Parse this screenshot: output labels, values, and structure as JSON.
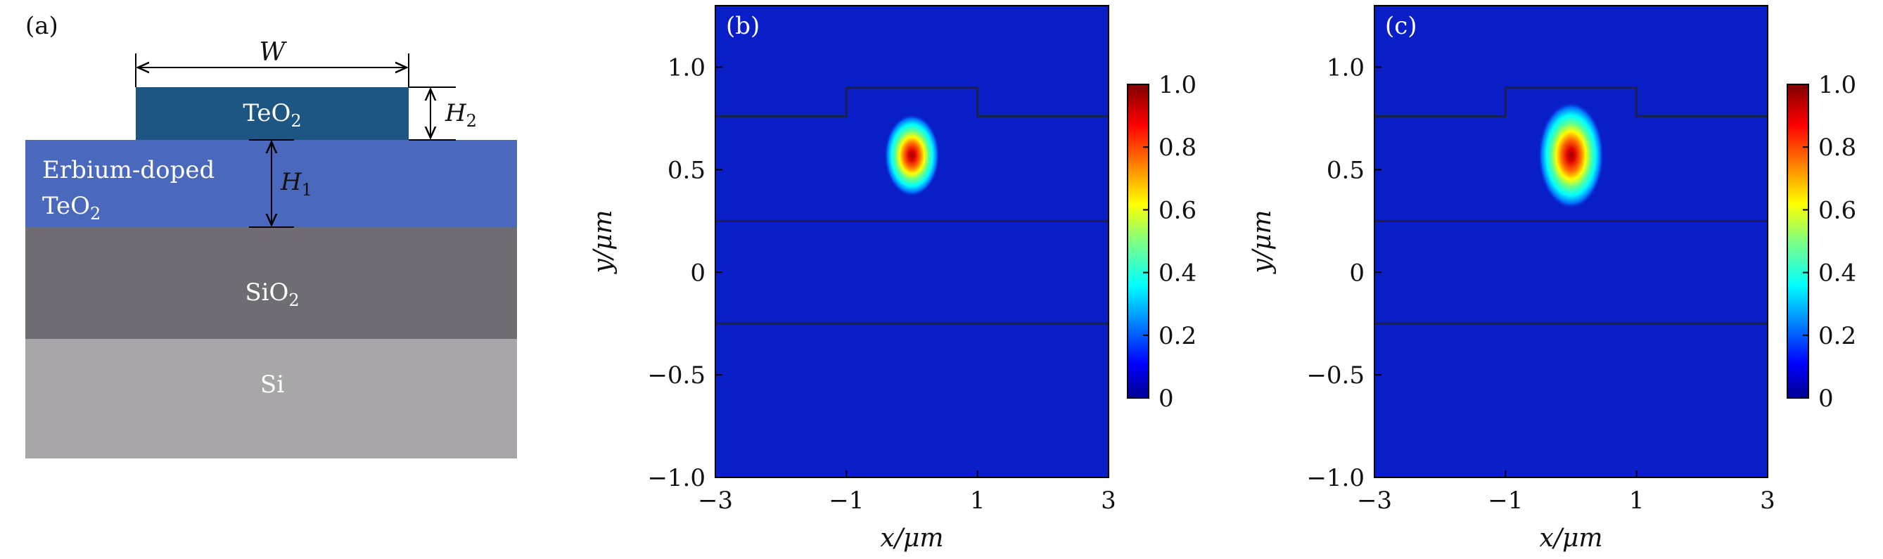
{
  "panel_a": {
    "tag": "(a)",
    "layers": [
      {
        "label": "TeO",
        "sub": "2",
        "color": "#1d5683"
      },
      {
        "label": "Erbium-doped",
        "label2": "TeO",
        "sub": "2",
        "color": "#4a69bd"
      },
      {
        "label": "SiO",
        "sub": "2",
        "color": "#6f6d73"
      },
      {
        "label": "Si",
        "color": "#a8a6a8"
      }
    ],
    "dims": {
      "W": "W",
      "H1": "H",
      "H1_sub": "1",
      "H2": "H",
      "H2_sub": "2"
    }
  },
  "chart_data": [
    {
      "type": "heatmap",
      "tag": "(b)",
      "xlabel": "x/μm",
      "ylabel": "y/μm",
      "xlim": [
        -3,
        3
      ],
      "ylim": [
        -1.0,
        1.3
      ],
      "xticks": [
        -3,
        -1,
        1,
        3
      ],
      "xtick_labels": [
        "−3",
        "−1",
        "1",
        "3"
      ],
      "yticks": [
        -1.0,
        -0.5,
        0,
        0.5,
        1.0
      ],
      "ytick_labels": [
        "−1.0",
        "−0.5",
        "0",
        "0.5",
        "1.0"
      ],
      "mode_center": [
        0.0,
        0.57
      ],
      "mode_spread": [
        0.42,
        0.2
      ],
      "interfaces_y": [
        0.25,
        -0.25,
        0.76
      ],
      "ridge": {
        "x": [
          -1.0,
          1.0
        ],
        "y_top": 0.9,
        "y_base": 0.76
      },
      "colorbar": {
        "range": [
          0,
          1.0
        ],
        "ticks": [
          "0",
          "0.2",
          "0.4",
          "0.6",
          "0.8",
          "1.0"
        ],
        "colormap": "jet"
      }
    },
    {
      "type": "heatmap",
      "tag": "(c)",
      "xlabel": "x/μm",
      "ylabel": "y/μm",
      "xlim": [
        -3,
        3
      ],
      "ylim": [
        -1.0,
        1.3
      ],
      "xticks": [
        -3,
        -1,
        1,
        3
      ],
      "xtick_labels": [
        "−3",
        "−1",
        "1",
        "3"
      ],
      "yticks": [
        -1.0,
        -0.5,
        0,
        0.5,
        1.0
      ],
      "ytick_labels": [
        "−1.0",
        "−0.5",
        "0",
        "0.5",
        "1.0"
      ],
      "mode_center": [
        0.0,
        0.57
      ],
      "mode_spread": [
        0.5,
        0.26
      ],
      "interfaces_y": [
        0.25,
        -0.25,
        0.76
      ],
      "ridge": {
        "x": [
          -1.0,
          1.0
        ],
        "y_top": 0.9,
        "y_base": 0.76
      },
      "colorbar": {
        "range": [
          0,
          1.0
        ],
        "ticks": [
          "0",
          "0.2",
          "0.4",
          "0.6",
          "0.8",
          "1.0"
        ],
        "colormap": "jet"
      }
    }
  ]
}
